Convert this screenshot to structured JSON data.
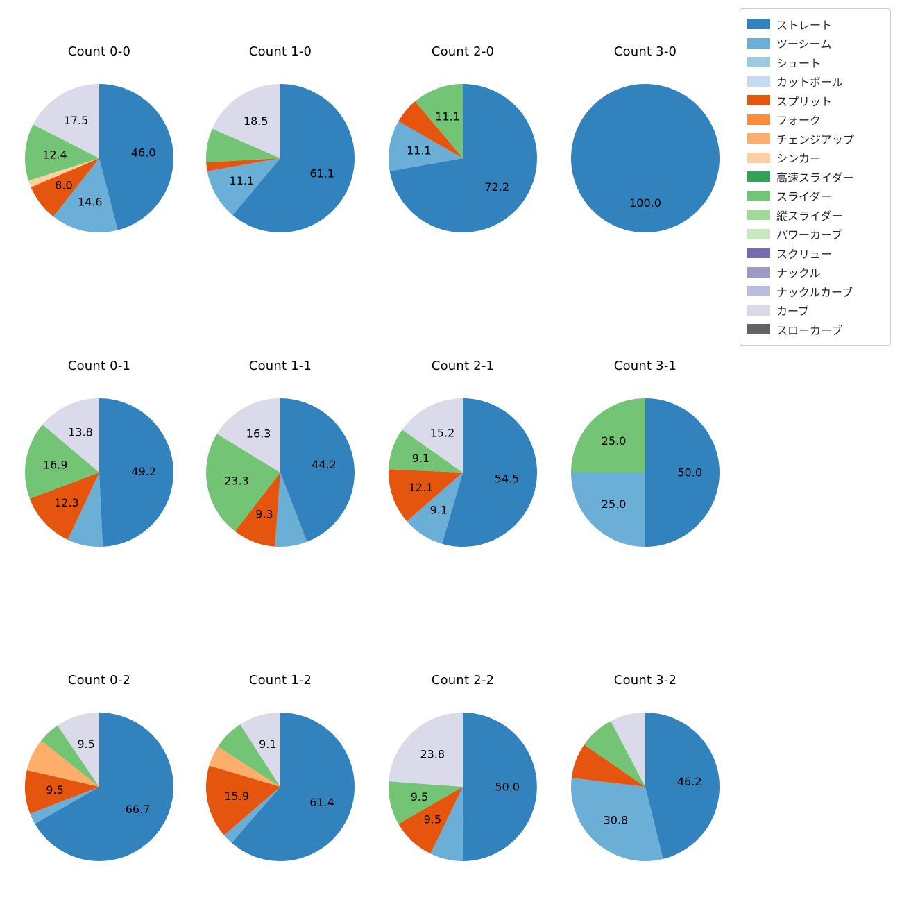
{
  "legend": {
    "items": [
      {
        "label": "ストレート",
        "color": "#3182bd"
      },
      {
        "label": "ツーシーム",
        "color": "#6baed6"
      },
      {
        "label": "シュート",
        "color": "#9ecae1"
      },
      {
        "label": "カットボール",
        "color": "#c6dbef"
      },
      {
        "label": "スプリット",
        "color": "#e6550d"
      },
      {
        "label": "フォーク",
        "color": "#fd8d3c"
      },
      {
        "label": "チェンジアップ",
        "color": "#fdae6b"
      },
      {
        "label": "シンカー",
        "color": "#fdd0a2"
      },
      {
        "label": "高速スライダー",
        "color": "#31a354"
      },
      {
        "label": "スライダー",
        "color": "#74c476"
      },
      {
        "label": "縦スライダー",
        "color": "#a1d99b"
      },
      {
        "label": "パワーカーブ",
        "color": "#c7e9c0"
      },
      {
        "label": "スクリュー",
        "color": "#756bb1"
      },
      {
        "label": "ナックル",
        "color": "#9e9ac8"
      },
      {
        "label": "ナックルカーブ",
        "color": "#bcbddc"
      },
      {
        "label": "カーブ",
        "color": "#dadaeb"
      },
      {
        "label": "スローカーブ",
        "color": "#636363"
      }
    ]
  },
  "label_rules": {
    "autopct_decimals": 1,
    "min_pct_label": 8.0
  },
  "chart_data": [
    {
      "type": "pie",
      "title": "Count 0-0",
      "start_angle_deg": 90,
      "direction": "clockwise",
      "slices": [
        {
          "label": "ストレート",
          "value": 46.0
        },
        {
          "label": "ツーシーム",
          "value": 14.6
        },
        {
          "label": "スプリット",
          "value": 8.0
        },
        {
          "label": "シンカー",
          "value": 1.5
        },
        {
          "label": "スライダー",
          "value": 12.4
        },
        {
          "label": "カーブ",
          "value": 17.5
        }
      ]
    },
    {
      "type": "pie",
      "title": "Count 1-0",
      "start_angle_deg": 90,
      "direction": "clockwise",
      "slices": [
        {
          "label": "ストレート",
          "value": 61.1
        },
        {
          "label": "ツーシーム",
          "value": 11.1
        },
        {
          "label": "スプリット",
          "value": 1.9
        },
        {
          "label": "スライダー",
          "value": 7.4
        },
        {
          "label": "カーブ",
          "value": 18.5
        }
      ]
    },
    {
      "type": "pie",
      "title": "Count 2-0",
      "start_angle_deg": 90,
      "direction": "clockwise",
      "slices": [
        {
          "label": "ストレート",
          "value": 72.2
        },
        {
          "label": "ツーシーム",
          "value": 11.1
        },
        {
          "label": "スプリット",
          "value": 5.6
        },
        {
          "label": "スライダー",
          "value": 11.1
        }
      ]
    },
    {
      "type": "pie",
      "title": "Count 3-0",
      "start_angle_deg": 90,
      "direction": "clockwise",
      "slices": [
        {
          "label": "ストレート",
          "value": 100.0
        }
      ]
    },
    {
      "type": "pie",
      "title": "Count 0-1",
      "start_angle_deg": 90,
      "direction": "clockwise",
      "slices": [
        {
          "label": "ストレート",
          "value": 49.2
        },
        {
          "label": "ツーシーム",
          "value": 7.7
        },
        {
          "label": "スプリット",
          "value": 12.3
        },
        {
          "label": "スライダー",
          "value": 16.9
        },
        {
          "label": "カーブ",
          "value": 13.8
        }
      ]
    },
    {
      "type": "pie",
      "title": "Count 1-1",
      "start_angle_deg": 90,
      "direction": "clockwise",
      "slices": [
        {
          "label": "ストレート",
          "value": 44.2
        },
        {
          "label": "ツーシーム",
          "value": 7.0
        },
        {
          "label": "スプリット",
          "value": 9.3
        },
        {
          "label": "スライダー",
          "value": 23.3
        },
        {
          "label": "カーブ",
          "value": 16.3
        }
      ]
    },
    {
      "type": "pie",
      "title": "Count 2-1",
      "start_angle_deg": 90,
      "direction": "clockwise",
      "slices": [
        {
          "label": "ストレート",
          "value": 54.5
        },
        {
          "label": "ツーシーム",
          "value": 9.1
        },
        {
          "label": "スプリット",
          "value": 12.1
        },
        {
          "label": "スライダー",
          "value": 9.1
        },
        {
          "label": "カーブ",
          "value": 15.2
        }
      ]
    },
    {
      "type": "pie",
      "title": "Count 3-1",
      "start_angle_deg": 90,
      "direction": "clockwise",
      "slices": [
        {
          "label": "ストレート",
          "value": 50.0
        },
        {
          "label": "ツーシーム",
          "value": 25.0
        },
        {
          "label": "スライダー",
          "value": 25.0
        }
      ]
    },
    {
      "type": "pie",
      "title": "Count 0-2",
      "start_angle_deg": 90,
      "direction": "clockwise",
      "slices": [
        {
          "label": "ストレート",
          "value": 66.7
        },
        {
          "label": "ツーシーム",
          "value": 2.4
        },
        {
          "label": "スプリット",
          "value": 9.5
        },
        {
          "label": "チェンジアップ",
          "value": 7.1
        },
        {
          "label": "スライダー",
          "value": 4.8
        },
        {
          "label": "カーブ",
          "value": 9.5
        }
      ]
    },
    {
      "type": "pie",
      "title": "Count 1-2",
      "start_angle_deg": 90,
      "direction": "clockwise",
      "slices": [
        {
          "label": "ストレート",
          "value": 61.4
        },
        {
          "label": "ツーシーム",
          "value": 2.3
        },
        {
          "label": "スプリット",
          "value": 15.9
        },
        {
          "label": "チェンジアップ",
          "value": 4.5
        },
        {
          "label": "スライダー",
          "value": 6.8
        },
        {
          "label": "カーブ",
          "value": 9.1
        }
      ]
    },
    {
      "type": "pie",
      "title": "Count 2-2",
      "start_angle_deg": 90,
      "direction": "clockwise",
      "slices": [
        {
          "label": "ストレート",
          "value": 50.0
        },
        {
          "label": "ツーシーム",
          "value": 7.1
        },
        {
          "label": "スプリット",
          "value": 9.5
        },
        {
          "label": "スライダー",
          "value": 9.5
        },
        {
          "label": "カーブ",
          "value": 23.8
        }
      ]
    },
    {
      "type": "pie",
      "title": "Count 3-2",
      "start_angle_deg": 90,
      "direction": "clockwise",
      "slices": [
        {
          "label": "ストレート",
          "value": 46.2
        },
        {
          "label": "ツーシーム",
          "value": 30.8
        },
        {
          "label": "スプリット",
          "value": 7.7
        },
        {
          "label": "スライダー",
          "value": 7.7
        },
        {
          "label": "カーブ",
          "value": 7.7
        }
      ]
    }
  ]
}
